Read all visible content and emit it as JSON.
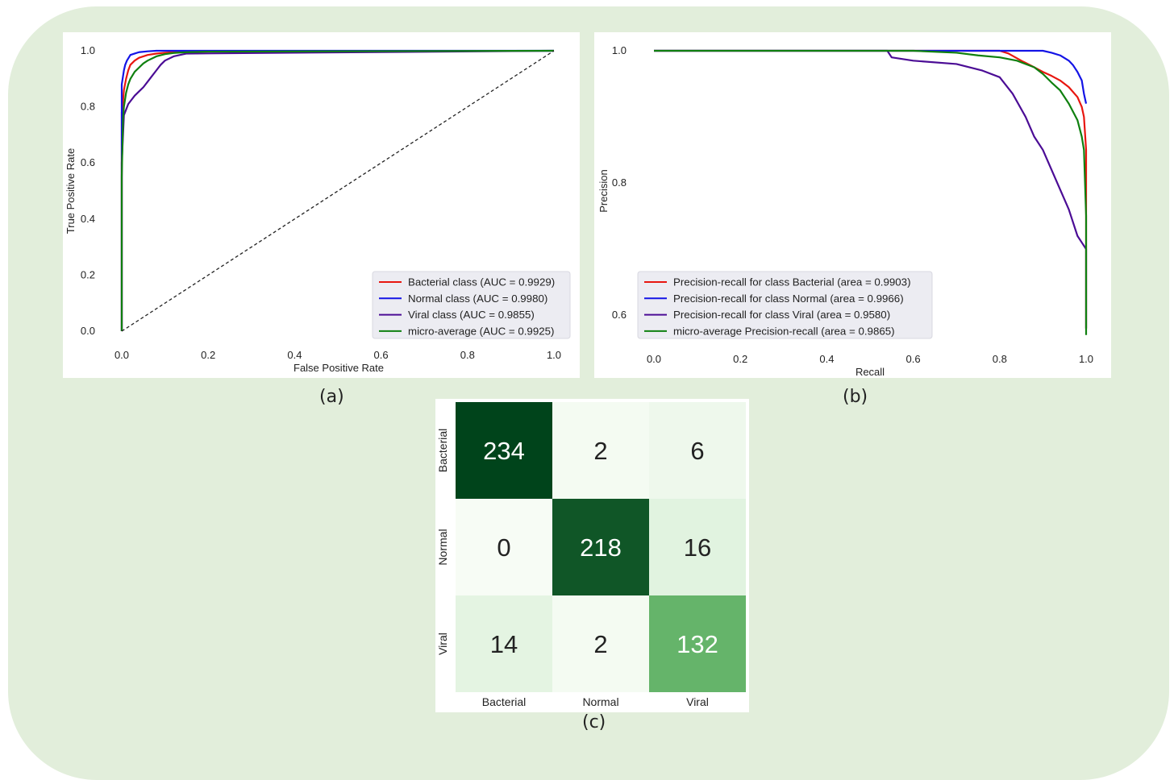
{
  "captions": {
    "a": "(a)",
    "b": "(b)",
    "c": "(c)"
  },
  "colors": {
    "bacterial": "#e8160f",
    "normal": "#1414e6",
    "viral": "#4b0c95",
    "micro": "#0f800f",
    "diagonal": "#222222"
  },
  "chart_data": [
    {
      "type": "line",
      "panel": "(a)",
      "title": "",
      "xlabel": "False Positive Rate",
      "ylabel": "True Positive Rate",
      "xlim": [
        0.0,
        1.0
      ],
      "ylim": [
        0.0,
        1.0
      ],
      "xticks": [
        "0.0",
        "0.2",
        "0.4",
        "0.6",
        "0.8",
        "1.0"
      ],
      "yticks": [
        "0.0",
        "0.2",
        "0.4",
        "0.6",
        "0.8",
        "1.0"
      ],
      "grid": false,
      "legend_position": "lower-right",
      "series": [
        {
          "name": "Bacterial class (AUC = 0.9929)",
          "color": "#e8160f",
          "x": [
            0.0,
            0.0,
            0.003,
            0.005,
            0.01,
            0.015,
            0.02,
            0.03,
            0.04,
            0.05,
            0.06,
            0.08,
            0.1,
            0.12,
            0.2,
            0.47
          ],
          "y": [
            0.0,
            0.78,
            0.82,
            0.86,
            0.9,
            0.93,
            0.95,
            0.965,
            0.975,
            0.98,
            0.985,
            0.99,
            0.993,
            0.995,
            0.997,
            0.998
          ]
        },
        {
          "name": "Normal class (AUC = 0.9980)",
          "color": "#1414e6",
          "x": [
            0.0,
            0.0,
            0.003,
            0.005,
            0.008,
            0.012,
            0.016,
            0.02,
            0.03,
            0.04,
            0.06,
            0.08,
            0.1,
            1.0
          ],
          "y": [
            0.0,
            0.88,
            0.91,
            0.93,
            0.95,
            0.965,
            0.975,
            0.985,
            0.99,
            0.995,
            0.998,
            1.0,
            1.0,
            1.0
          ]
        },
        {
          "name": "Viral class (AUC = 0.9855)",
          "color": "#4b0c95",
          "x": [
            0.0,
            0.0,
            0.005,
            0.01,
            0.015,
            0.02,
            0.03,
            0.04,
            0.05,
            0.06,
            0.07,
            0.08,
            0.09,
            0.1,
            0.12,
            0.15,
            1.0
          ],
          "y": [
            0.0,
            0.6,
            0.77,
            0.79,
            0.81,
            0.82,
            0.84,
            0.855,
            0.87,
            0.89,
            0.91,
            0.93,
            0.95,
            0.965,
            0.98,
            0.99,
            1.0
          ]
        },
        {
          "name": "micro-average (AUC = 0.9925)",
          "color": "#0f800f",
          "x": [
            0.0,
            0.0,
            0.003,
            0.005,
            0.01,
            0.015,
            0.02,
            0.03,
            0.04,
            0.05,
            0.06,
            0.08,
            0.1,
            0.12,
            0.15,
            0.2,
            1.0
          ],
          "y": [
            0.0,
            0.55,
            0.76,
            0.8,
            0.85,
            0.88,
            0.9,
            0.925,
            0.94,
            0.955,
            0.965,
            0.98,
            0.988,
            0.992,
            0.995,
            0.997,
            1.0
          ]
        },
        {
          "name": "",
          "style": "dashed",
          "color": "#222222",
          "x": [
            0.0,
            1.0
          ],
          "y": [
            0.0,
            1.0
          ]
        }
      ]
    },
    {
      "type": "line",
      "panel": "(b)",
      "title": "",
      "xlabel": "Recall",
      "ylabel": "Precision",
      "xlim": [
        0.0,
        1.0
      ],
      "ylim": [
        0.57,
        1.0
      ],
      "xticks": [
        "0.0",
        "0.2",
        "0.4",
        "0.6",
        "0.8",
        "1.0"
      ],
      "yticks": [
        "0.6",
        "0.8",
        "1.0"
      ],
      "grid": false,
      "legend_position": "lower-left",
      "series": [
        {
          "name": "Precision-recall for class Bacterial (area = 0.9903)",
          "color": "#e8160f",
          "x": [
            0.0,
            0.8,
            0.82,
            0.85,
            0.88,
            0.9,
            0.92,
            0.94,
            0.96,
            0.98,
            0.99,
            0.995,
            1.0,
            1.0
          ],
          "y": [
            1.0,
            1.0,
            0.996,
            0.985,
            0.975,
            0.968,
            0.962,
            0.955,
            0.945,
            0.93,
            0.915,
            0.9,
            0.85,
            0.58
          ]
        },
        {
          "name": "Precision-recall for class Normal (area = 0.9966)",
          "color": "#1414e6",
          "x": [
            0.0,
            0.9,
            0.92,
            0.94,
            0.96,
            0.97,
            0.98,
            0.99,
            0.995,
            1.0
          ],
          "y": [
            1.0,
            1.0,
            0.997,
            0.993,
            0.985,
            0.978,
            0.968,
            0.955,
            0.935,
            0.92
          ]
        },
        {
          "name": "Precision-recall for class Viral (area = 0.9580)",
          "color": "#4b0c95",
          "x": [
            0.0,
            0.54,
            0.55,
            0.6,
            0.7,
            0.76,
            0.8,
            0.83,
            0.86,
            0.88,
            0.9,
            0.92,
            0.94,
            0.96,
            0.98,
            0.99,
            1.0,
            1.0
          ],
          "y": [
            1.0,
            1.0,
            0.99,
            0.985,
            0.98,
            0.97,
            0.96,
            0.935,
            0.9,
            0.87,
            0.85,
            0.82,
            0.79,
            0.76,
            0.72,
            0.71,
            0.7,
            0.58
          ]
        },
        {
          "name": "micro-average Precision-recall (area = 0.9865)",
          "color": "#0f800f",
          "x": [
            0.0,
            0.6,
            0.7,
            0.75,
            0.8,
            0.84,
            0.88,
            0.9,
            0.92,
            0.94,
            0.96,
            0.98,
            0.99,
            0.995,
            1.0,
            1.0
          ],
          "y": [
            1.0,
            1.0,
            0.997,
            0.993,
            0.99,
            0.985,
            0.975,
            0.965,
            0.952,
            0.94,
            0.92,
            0.895,
            0.87,
            0.85,
            0.75,
            0.57
          ]
        }
      ]
    },
    {
      "type": "heatmap",
      "panel": "(c)",
      "title": "",
      "x_categories": [
        "Bacterial",
        "Normal",
        "Viral"
      ],
      "y_categories": [
        "Bacterial",
        "Normal",
        "Viral"
      ],
      "values": [
        [
          234,
          2,
          6
        ],
        [
          0,
          218,
          16
        ],
        [
          14,
          2,
          132
        ]
      ],
      "colormap": "Greens"
    }
  ]
}
